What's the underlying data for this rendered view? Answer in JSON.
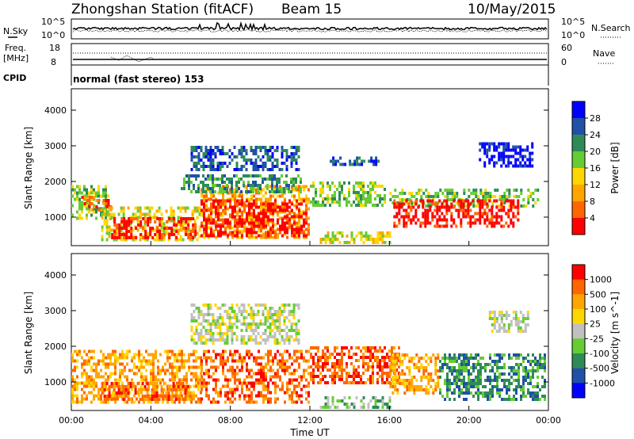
{
  "header": {
    "station": "Zhongshan Station (fitACF)",
    "beam": "Beam 15",
    "date": "10/May/2015"
  },
  "noise_panel": {
    "left_label": "N.Sky",
    "left_ticks": [
      "10^5",
      "10^0"
    ],
    "right_label": "N.Search",
    "right_ticks": [
      "10^5",
      "10^0"
    ]
  },
  "freq_panel": {
    "left_label_1": "Freq.",
    "left_label_2": "[MHz]",
    "left_ticks": [
      "18",
      "8"
    ],
    "right_label": "Nave",
    "right_ticks": [
      "60",
      "0"
    ]
  },
  "cpid": {
    "label": "CPID",
    "value": "normal (fast stereo) 153"
  },
  "colors": {
    "power": [
      "#0000ff",
      "#2050a8",
      "#2e8b57",
      "#66cc33",
      "#ffd700",
      "#ffa500",
      "#ff6600",
      "#ff0000"
    ],
    "velocity": [
      "#ff0000",
      "#ff6600",
      "#ffa500",
      "#ffd700",
      "#c0c0c0",
      "#66cc33",
      "#2e8b57",
      "#2050a8",
      "#0000ff"
    ]
  },
  "chart_data": [
    {
      "type": "heatmap",
      "name": "power",
      "ylabel": "Slant Range [km]",
      "yticks": [
        "1000",
        "2000",
        "3000",
        "4000"
      ],
      "ylim": [
        200,
        4600
      ],
      "xlim": [
        0,
        24
      ],
      "xticks": [
        "00:00",
        "04:00",
        "08:00",
        "12:00",
        "16:00",
        "20:00",
        "00:00"
      ],
      "colorbar_label": "Power [dB]",
      "colorbar_ticks": [
        "4",
        "8",
        "12",
        "16",
        "20",
        "24",
        "28"
      ],
      "regions": [
        {
          "x0": 0.0,
          "x1": 2.0,
          "y0": 1000,
          "y1": 1900,
          "v": 3
        },
        {
          "x0": 0.5,
          "x1": 2.0,
          "y0": 1200,
          "y1": 1600,
          "v": 6
        },
        {
          "x0": 1.5,
          "x1": 6.5,
          "y0": 400,
          "y1": 1300,
          "v": 4
        },
        {
          "x0": 2.0,
          "x1": 6.2,
          "y0": 450,
          "y1": 1000,
          "v": 7
        },
        {
          "x0": 6.5,
          "x1": 12.0,
          "y0": 400,
          "y1": 1900,
          "v": 5
        },
        {
          "x0": 6.5,
          "x1": 11.8,
          "y0": 500,
          "y1": 1500,
          "v": 7
        },
        {
          "x0": 5.5,
          "x1": 11.5,
          "y0": 1700,
          "y1": 2200,
          "v": 2
        },
        {
          "x0": 6.0,
          "x1": 11.5,
          "y0": 2300,
          "y1": 3000,
          "v": 1
        },
        {
          "x0": 12.0,
          "x1": 15.8,
          "y0": 1300,
          "y1": 2000,
          "v": 3
        },
        {
          "x0": 12.5,
          "x1": 16.0,
          "y0": 300,
          "y1": 600,
          "v": 4
        },
        {
          "x0": 13.0,
          "x1": 15.5,
          "y0": 2500,
          "y1": 2700,
          "v": 1
        },
        {
          "x0": 16.0,
          "x1": 23.5,
          "y0": 1300,
          "y1": 1800,
          "v": 3
        },
        {
          "x0": 16.2,
          "x1": 22.5,
          "y0": 700,
          "y1": 1500,
          "v": 7
        },
        {
          "x0": 20.5,
          "x1": 23.2,
          "y0": 2400,
          "y1": 3100,
          "v": 0
        }
      ]
    },
    {
      "type": "heatmap",
      "name": "velocity",
      "ylabel": "Slant Range [km]",
      "yticks": [
        "1000",
        "2000",
        "3000",
        "4000"
      ],
      "ylim": [
        200,
        4600
      ],
      "xlim": [
        0,
        24
      ],
      "xticks": [
        "00:00",
        "04:00",
        "08:00",
        "12:00",
        "16:00",
        "20:00",
        "00:00"
      ],
      "xlabel": "Time UT",
      "colorbar_label": "Velocity [m s^-1]",
      "colorbar_ticks": [
        "1000",
        "500",
        "100",
        "25",
        "-25",
        "-100",
        "-500",
        "-1000"
      ],
      "regions": [
        {
          "x0": 0.0,
          "x1": 6.5,
          "y0": 400,
          "y1": 1900,
          "v": 2
        },
        {
          "x0": 1.5,
          "x1": 6.0,
          "y0": 500,
          "y1": 1000,
          "v": 1
        },
        {
          "x0": 6.5,
          "x1": 12.0,
          "y0": 400,
          "y1": 1900,
          "v": 1
        },
        {
          "x0": 6.0,
          "x1": 11.5,
          "y0": 2100,
          "y1": 3200,
          "v": 4
        },
        {
          "x0": 12.0,
          "x1": 16.5,
          "y0": 1000,
          "y1": 2000,
          "v": 1
        },
        {
          "x0": 12.5,
          "x1": 16.0,
          "y0": 300,
          "y1": 600,
          "v": 5
        },
        {
          "x0": 16.0,
          "x1": 18.5,
          "y0": 700,
          "y1": 1800,
          "v": 2
        },
        {
          "x0": 18.5,
          "x1": 23.8,
          "y0": 500,
          "y1": 1800,
          "v": 6
        },
        {
          "x0": 21.0,
          "x1": 23.0,
          "y0": 2400,
          "y1": 3000,
          "v": 4
        }
      ]
    }
  ]
}
